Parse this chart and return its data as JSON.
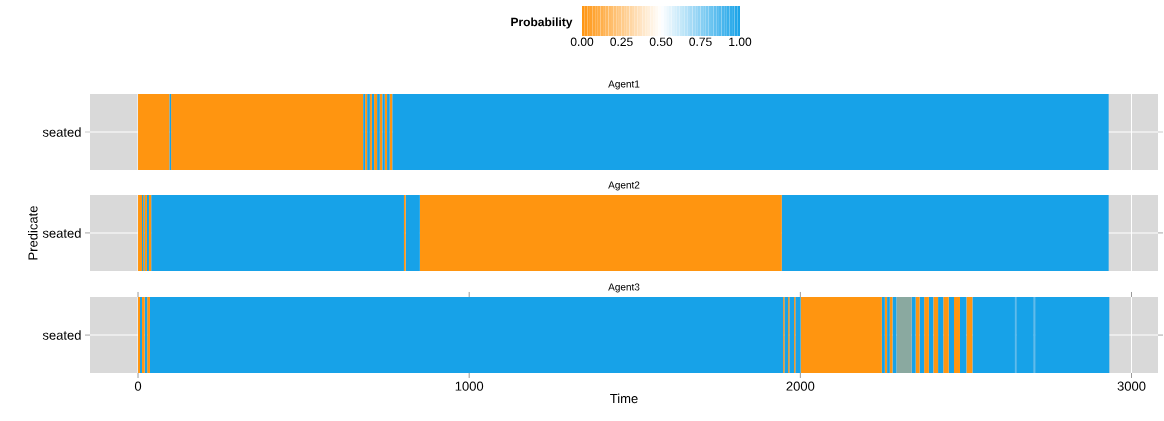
{
  "chart_data": [
    {
      "type": "bar",
      "orientation": "horizontal",
      "stacked": true,
      "title": "Agent1",
      "clabel": "Probability",
      "clim": [
        0,
        1
      ],
      "cticks": [
        {
          "value": 0,
          "label": "0.00"
        },
        {
          "value": 0.25,
          "label": "0.25"
        },
        {
          "value": 0.5,
          "label": "0.50"
        },
        {
          "value": 0.75,
          "label": "0.75"
        },
        {
          "value": 1,
          "label": "1.00"
        }
      ],
      "categories": [
        "seated"
      ],
      "series": [
        {
          "color": "#ff9510",
          "values": [
            95
          ]
        },
        {
          "color": "#17a2e8",
          "values": [
            5
          ]
        },
        {
          "color": "#ff9510",
          "values": [
            580
          ]
        },
        {
          "color": "#17a2e8",
          "values": [
            6
          ]
        },
        {
          "color": "#ff9510",
          "values": [
            6
          ]
        },
        {
          "color": "#17a2e8",
          "values": [
            8
          ]
        },
        {
          "color": "#ff9510",
          "values": [
            6
          ]
        },
        {
          "color": "#17a2e8",
          "values": [
            7
          ]
        },
        {
          "color": "#ff9510",
          "values": [
            9
          ]
        },
        {
          "color": "#17a2e8",
          "values": [
            8
          ]
        },
        {
          "color": "#ff9510",
          "values": [
            8
          ]
        },
        {
          "color": "#17a2e8",
          "values": [
            7
          ]
        },
        {
          "color": "#ff9510",
          "values": [
            7
          ]
        },
        {
          "color": "#17a2e8",
          "values": [
            8
          ]
        },
        {
          "color": "#ff9510",
          "values": [
            8
          ]
        },
        {
          "color": "#17a2e8",
          "values": [
            2163
          ]
        }
      ],
      "xlim": [
        -145,
        3080
      ],
      "xticks": [
        0,
        1000,
        2000,
        3000
      ],
      "grid": true,
      "tick_labels": "y"
    },
    {
      "type": "bar",
      "orientation": "horizontal",
      "stacked": true,
      "title": "Agent2",
      "ylabel": "Predicate",
      "categories": [
        "seated"
      ],
      "series": [
        {
          "color": "#ff9510",
          "values": [
            12
          ]
        },
        {
          "color": "#17a2e8",
          "values": [
            3
          ]
        },
        {
          "color": "#ff9510",
          "values": [
            3
          ]
        },
        {
          "color": "#17a2e8",
          "values": [
            2
          ]
        },
        {
          "color": "#ff9510",
          "values": [
            7
          ]
        },
        {
          "color": "#17a2e8",
          "values": [
            6
          ]
        },
        {
          "color": "#ff9510",
          "values": [
            7
          ]
        },
        {
          "color": "#17a2e8",
          "values": [
            763
          ]
        },
        {
          "color": "#ff9510",
          "values": [
            5
          ]
        },
        {
          "color": "#17a2e8",
          "values": [
            43
          ]
        },
        {
          "color": "#ff9510",
          "values": [
            1093
          ]
        },
        {
          "color": "#17a2e8",
          "values": [
            987
          ]
        }
      ],
      "xlim": [
        -145,
        3080
      ],
      "xticks": [
        0,
        1000,
        2000,
        3000
      ],
      "grid": true,
      "tick_labels": "y"
    },
    {
      "type": "bar",
      "orientation": "horizontal",
      "stacked": true,
      "title": "Agent3",
      "xlabel": "Time",
      "categories": [
        "seated"
      ],
      "series": [
        {
          "color": "#ff9510",
          "values": [
            6
          ]
        },
        {
          "color": "#17a2e8",
          "values": [
            6
          ]
        },
        {
          "color": "#ff9510",
          "values": [
            8
          ]
        },
        {
          "color": "#17a2e8",
          "values": [
            8
          ]
        },
        {
          "color": "#ff9510",
          "values": [
            8
          ]
        },
        {
          "color": "#17a2e8",
          "values": [
            1912
          ]
        },
        {
          "color": "#ff9510",
          "values": [
            4
          ]
        },
        {
          "color": "#17a2e8",
          "values": [
            11
          ]
        },
        {
          "color": "#ff9510",
          "values": [
            4
          ]
        },
        {
          "color": "#17a2e8",
          "values": [
            14
          ]
        },
        {
          "color": "#ff9510",
          "values": [
            4
          ]
        },
        {
          "color": "#17a2e8",
          "values": [
            16
          ]
        },
        {
          "color": "#ff9510",
          "values": [
            245
          ]
        },
        {
          "color": "#17a2e8",
          "values": [
            9
          ]
        },
        {
          "color": "#ff9510",
          "values": [
            7
          ]
        },
        {
          "color": "#17a2e8",
          "values": [
            8
          ]
        },
        {
          "color": "#ff9510",
          "values": [
            8
          ]
        },
        {
          "color": "#17a2e8",
          "values": [
            12
          ]
        },
        {
          "color": "#8aa9a0",
          "values": [
            46
          ]
        },
        {
          "color": "#17a2e8",
          "values": [
            12
          ]
        },
        {
          "color": "#ff9510",
          "values": [
            12
          ]
        },
        {
          "color": "#17a2e8",
          "values": [
            14
          ]
        },
        {
          "color": "#ff9510",
          "values": [
            14
          ]
        },
        {
          "color": "#17a2e8",
          "values": [
            14
          ]
        },
        {
          "color": "#ff9510",
          "values": [
            14
          ]
        },
        {
          "color": "#17a2e8",
          "values": [
            16
          ]
        },
        {
          "color": "#ff9510",
          "values": [
            16
          ]
        },
        {
          "color": "#17a2e8",
          "values": [
            16
          ]
        },
        {
          "color": "#ff9510",
          "values": [
            18
          ]
        },
        {
          "color": "#17a2e8",
          "values": [
            20
          ]
        },
        {
          "color": "#ff9510",
          "values": [
            18
          ]
        },
        {
          "color": "#17a2e8",
          "values": [
            128
          ]
        },
        {
          "color": "#5dbcee",
          "values": [
            4
          ]
        },
        {
          "color": "#17a2e8",
          "values": [
            53
          ]
        },
        {
          "color": "#5dbcee",
          "values": [
            4
          ]
        },
        {
          "color": "#17a2e8",
          "values": [
            224
          ]
        }
      ],
      "xlim": [
        -145,
        3080
      ],
      "xticks": [
        0,
        1000,
        2000,
        3000
      ],
      "grid": true
    }
  ]
}
